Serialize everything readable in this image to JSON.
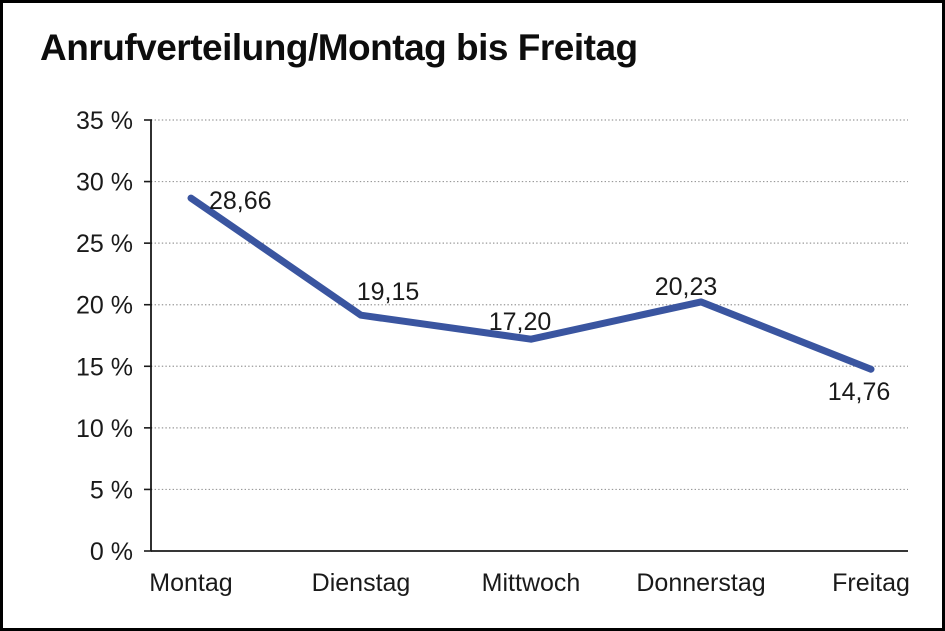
{
  "chart_data": {
    "type": "line",
    "title": "Anrufverteilung/Montag bis Freitag",
    "categories": [
      "Montag",
      "Dienstag",
      "Mittwoch",
      "Donnerstag",
      "Freitag"
    ],
    "series": [
      {
        "name": "Anrufverteilung",
        "values": [
          28.66,
          19.15,
          17.2,
          20.23,
          14.76
        ]
      }
    ],
    "data_labels": [
      "28,66",
      "19,15",
      "17,20",
      "20,23",
      "14,76"
    ],
    "y_ticks": [
      0,
      5,
      10,
      15,
      20,
      25,
      30,
      35
    ],
    "y_tick_labels": [
      "0 %",
      "5 %",
      "10 %",
      "15 %",
      "20 %",
      "25 %",
      "30 %",
      "35 %"
    ],
    "ylim": [
      0,
      35
    ],
    "xlabel": "",
    "ylabel": "",
    "legend": "none",
    "grid": "horizontal-dotted",
    "colors": {
      "line": "#3A55A0",
      "axis": "#1a1a1a",
      "gridline": "#9a9a9a",
      "text": "#1a1a1a",
      "background": "#ffffff",
      "frame_border": "#000000"
    }
  }
}
